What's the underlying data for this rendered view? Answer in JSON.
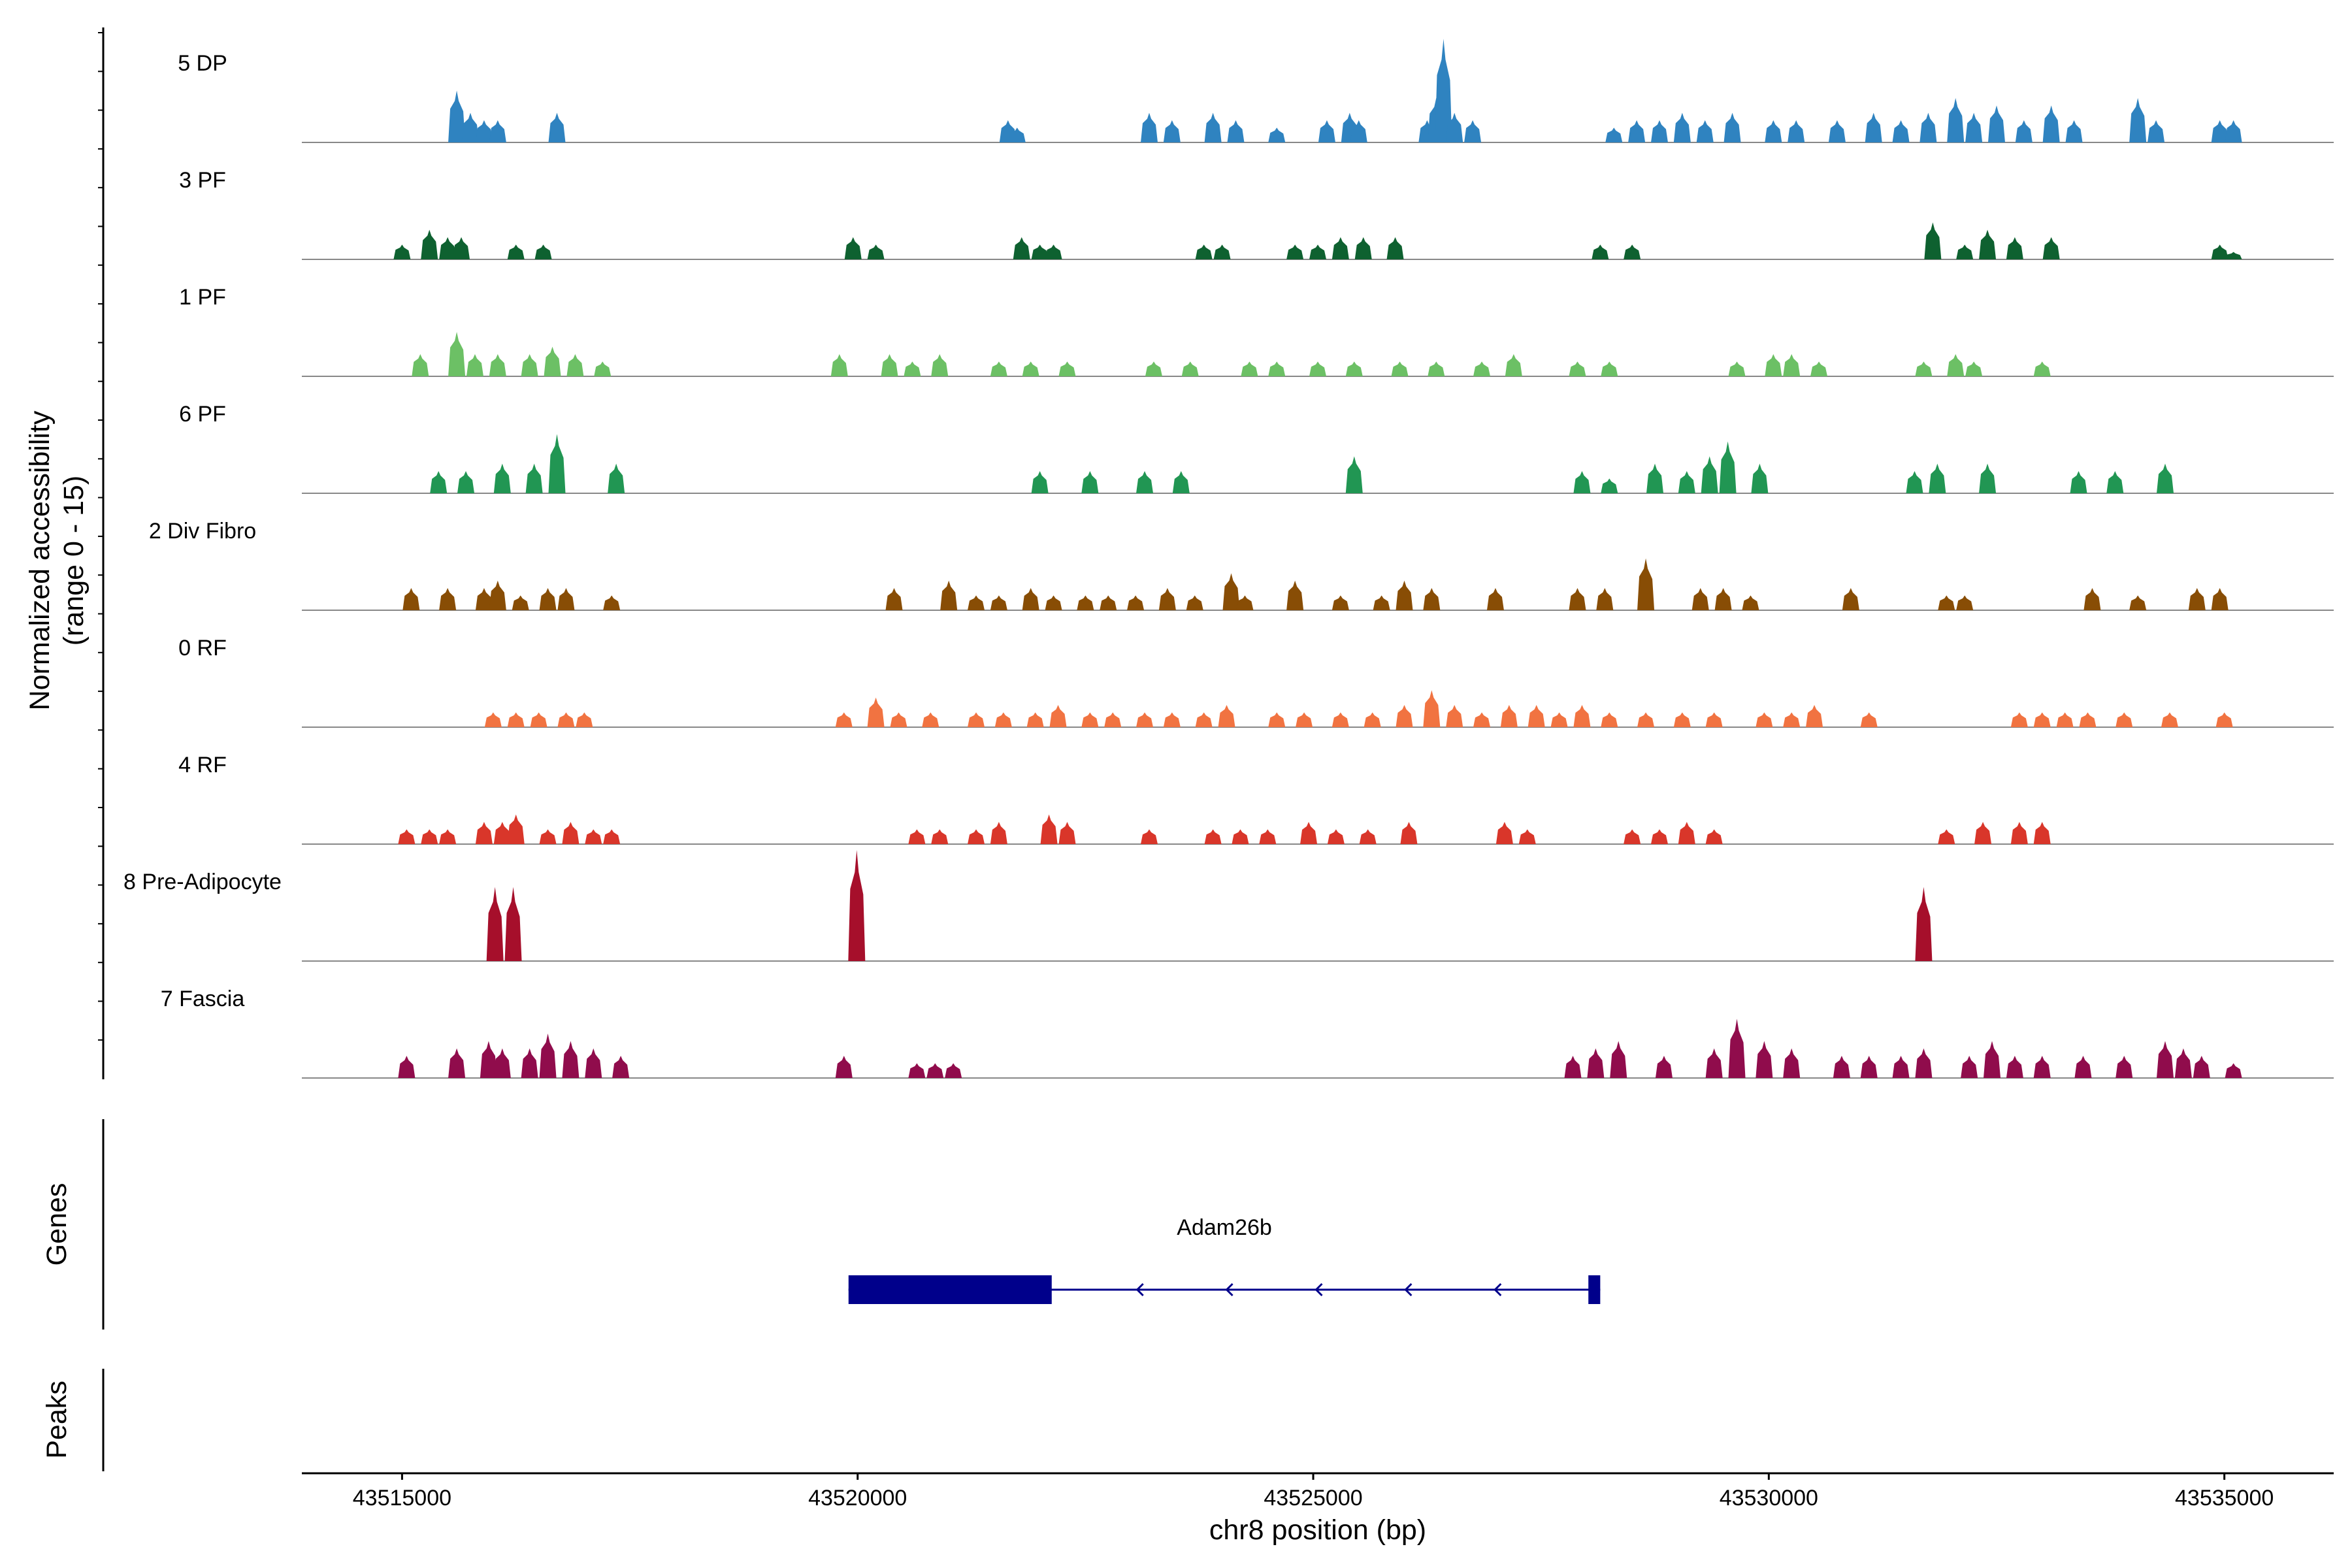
{
  "chart_data": {
    "type": "area",
    "title": "",
    "xlabel": "chr8 position (bp)",
    "ylabel_line1": "Normalized accessibility",
    "ylabel_line2": "(range 0 - 15)",
    "xlim": [
      43513900,
      43536200
    ],
    "ylim": [
      0,
      15
    ],
    "x_ticks": [
      {
        "value": 43515000,
        "label": "43515000"
      },
      {
        "value": 43520000,
        "label": "43520000"
      },
      {
        "value": 43525000,
        "label": "43525000"
      },
      {
        "value": 43530000,
        "label": "43530000"
      },
      {
        "value": 43535000,
        "label": "43535000"
      }
    ],
    "series": [
      {
        "name": "5 DP",
        "color": "#2f83c0",
        "peaks": [
          [
            43515600,
            7
          ],
          [
            43515750,
            4
          ],
          [
            43515900,
            3
          ],
          [
            43516050,
            3
          ],
          [
            43516700,
            4
          ],
          [
            43521650,
            3
          ],
          [
            43521750,
            2
          ],
          [
            43523200,
            4
          ],
          [
            43523450,
            3
          ],
          [
            43523900,
            4
          ],
          [
            43524150,
            3
          ],
          [
            43524600,
            2
          ],
          [
            43525150,
            3
          ],
          [
            43525400,
            4
          ],
          [
            43525500,
            3
          ],
          [
            43526250,
            3
          ],
          [
            43526350,
            6
          ],
          [
            43526430,
            14
          ],
          [
            43526550,
            4
          ],
          [
            43526750,
            3
          ],
          [
            43528300,
            2
          ],
          [
            43528550,
            3
          ],
          [
            43528800,
            3
          ],
          [
            43529050,
            4
          ],
          [
            43529300,
            3
          ],
          [
            43529600,
            4
          ],
          [
            43530050,
            3
          ],
          [
            43530300,
            3
          ],
          [
            43530750,
            3
          ],
          [
            43531150,
            4
          ],
          [
            43531450,
            3
          ],
          [
            43531750,
            4
          ],
          [
            43532050,
            6
          ],
          [
            43532250,
            4
          ],
          [
            43532500,
            5
          ],
          [
            43532800,
            3
          ],
          [
            43533100,
            5
          ],
          [
            43533350,
            3
          ],
          [
            43534050,
            6
          ],
          [
            43534250,
            3
          ],
          [
            43534950,
            3
          ],
          [
            43535100,
            3
          ]
        ]
      },
      {
        "name": "3 PF",
        "color": "#0e6130",
        "peaks": [
          [
            43515000,
            2
          ],
          [
            43515300,
            4
          ],
          [
            43515500,
            3
          ],
          [
            43515650,
            3
          ],
          [
            43516250,
            2
          ],
          [
            43516550,
            2
          ],
          [
            43519950,
            3
          ],
          [
            43520200,
            2
          ],
          [
            43521800,
            3
          ],
          [
            43522000,
            2
          ],
          [
            43522150,
            2
          ],
          [
            43523800,
            2
          ],
          [
            43524000,
            2
          ],
          [
            43524800,
            2
          ],
          [
            43525050,
            2
          ],
          [
            43525300,
            3
          ],
          [
            43525550,
            3
          ],
          [
            43525900,
            3
          ],
          [
            43528150,
            2
          ],
          [
            43528500,
            2
          ],
          [
            43531800,
            5
          ],
          [
            43532150,
            2
          ],
          [
            43532400,
            4
          ],
          [
            43532700,
            3
          ],
          [
            43533100,
            3
          ],
          [
            43534950,
            2
          ],
          [
            43535100,
            1
          ]
        ]
      },
      {
        "name": "1 PF",
        "color": "#6cc065",
        "peaks": [
          [
            43515200,
            3
          ],
          [
            43515600,
            6
          ],
          [
            43515800,
            3
          ],
          [
            43516050,
            3
          ],
          [
            43516400,
            3
          ],
          [
            43516650,
            4
          ],
          [
            43516900,
            3
          ],
          [
            43517200,
            2
          ],
          [
            43519800,
            3
          ],
          [
            43520350,
            3
          ],
          [
            43520600,
            2
          ],
          [
            43520900,
            3
          ],
          [
            43521550,
            2
          ],
          [
            43521900,
            2
          ],
          [
            43522300,
            2
          ],
          [
            43523250,
            2
          ],
          [
            43523650,
            2
          ],
          [
            43524300,
            2
          ],
          [
            43524600,
            2
          ],
          [
            43525050,
            2
          ],
          [
            43525450,
            2
          ],
          [
            43525950,
            2
          ],
          [
            43526350,
            2
          ],
          [
            43526850,
            2
          ],
          [
            43527200,
            3
          ],
          [
            43527900,
            2
          ],
          [
            43528250,
            2
          ],
          [
            43529650,
            2
          ],
          [
            43530050,
            3
          ],
          [
            43530250,
            3
          ],
          [
            43530550,
            2
          ],
          [
            43531700,
            2
          ],
          [
            43532050,
            3
          ],
          [
            43532250,
            2
          ],
          [
            43533000,
            2
          ]
        ]
      },
      {
        "name": "6 PF",
        "color": "#219653",
        "peaks": [
          [
            43515400,
            3
          ],
          [
            43515700,
            3
          ],
          [
            43516100,
            4
          ],
          [
            43516450,
            4
          ],
          [
            43516700,
            8
          ],
          [
            43517350,
            4
          ],
          [
            43522000,
            3
          ],
          [
            43522550,
            3
          ],
          [
            43523150,
            3
          ],
          [
            43523550,
            3
          ],
          [
            43525450,
            5
          ],
          [
            43527950,
            3
          ],
          [
            43528250,
            2
          ],
          [
            43528750,
            4
          ],
          [
            43529100,
            3
          ],
          [
            43529350,
            5
          ],
          [
            43529550,
            7
          ],
          [
            43529900,
            4
          ],
          [
            43531600,
            3
          ],
          [
            43531850,
            4
          ],
          [
            43532400,
            4
          ],
          [
            43533400,
            3
          ],
          [
            43533800,
            3
          ],
          [
            43534350,
            4
          ]
        ]
      },
      {
        "name": "2 Div Fibro",
        "color": "#884d05",
        "peaks": [
          [
            43515100,
            3
          ],
          [
            43515500,
            3
          ],
          [
            43515900,
            3
          ],
          [
            43516050,
            4
          ],
          [
            43516300,
            2
          ],
          [
            43516600,
            3
          ],
          [
            43516800,
            3
          ],
          [
            43517300,
            2
          ],
          [
            43520400,
            3
          ],
          [
            43521000,
            4
          ],
          [
            43521300,
            2
          ],
          [
            43521550,
            2
          ],
          [
            43521900,
            3
          ],
          [
            43522150,
            2
          ],
          [
            43522500,
            2
          ],
          [
            43522750,
            2
          ],
          [
            43523050,
            2
          ],
          [
            43523400,
            3
          ],
          [
            43523700,
            2
          ],
          [
            43524100,
            5
          ],
          [
            43524250,
            2
          ],
          [
            43524800,
            4
          ],
          [
            43525300,
            2
          ],
          [
            43525750,
            2
          ],
          [
            43526000,
            4
          ],
          [
            43526300,
            3
          ],
          [
            43527000,
            3
          ],
          [
            43527900,
            3
          ],
          [
            43528200,
            3
          ],
          [
            43528650,
            7
          ],
          [
            43529250,
            3
          ],
          [
            43529500,
            3
          ],
          [
            43529800,
            2
          ],
          [
            43530900,
            3
          ],
          [
            43531950,
            2
          ],
          [
            43532150,
            2
          ],
          [
            43533550,
            3
          ],
          [
            43534050,
            2
          ],
          [
            43534700,
            3
          ],
          [
            43534950,
            3
          ]
        ]
      },
      {
        "name": "0 RF",
        "color": "#f17341",
        "peaks": [
          [
            43516000,
            2
          ],
          [
            43516250,
            2
          ],
          [
            43516500,
            2
          ],
          [
            43516800,
            2
          ],
          [
            43517000,
            2
          ],
          [
            43519850,
            2
          ],
          [
            43520200,
            4
          ],
          [
            43520450,
            2
          ],
          [
            43520800,
            2
          ],
          [
            43521300,
            2
          ],
          [
            43521600,
            2
          ],
          [
            43521950,
            2
          ],
          [
            43522200,
            3
          ],
          [
            43522550,
            2
          ],
          [
            43522800,
            2
          ],
          [
            43523150,
            2
          ],
          [
            43523450,
            2
          ],
          [
            43523800,
            2
          ],
          [
            43524050,
            3
          ],
          [
            43524600,
            2
          ],
          [
            43524900,
            2
          ],
          [
            43525300,
            2
          ],
          [
            43525650,
            2
          ],
          [
            43526000,
            3
          ],
          [
            43526300,
            5
          ],
          [
            43526550,
            3
          ],
          [
            43526850,
            2
          ],
          [
            43527150,
            3
          ],
          [
            43527450,
            3
          ],
          [
            43527700,
            2
          ],
          [
            43527950,
            3
          ],
          [
            43528250,
            2
          ],
          [
            43528650,
            2
          ],
          [
            43529050,
            2
          ],
          [
            43529400,
            2
          ],
          [
            43529950,
            2
          ],
          [
            43530250,
            2
          ],
          [
            43530500,
            3
          ],
          [
            43531100,
            2
          ],
          [
            43532750,
            2
          ],
          [
            43533000,
            2
          ],
          [
            43533250,
            2
          ],
          [
            43533500,
            2
          ],
          [
            43533900,
            2
          ],
          [
            43534400,
            2
          ],
          [
            43535000,
            2
          ]
        ]
      },
      {
        "name": "4 RF",
        "color": "#d9362a",
        "peaks": [
          [
            43515050,
            2
          ],
          [
            43515300,
            2
          ],
          [
            43515500,
            2
          ],
          [
            43515900,
            3
          ],
          [
            43516100,
            3
          ],
          [
            43516250,
            4
          ],
          [
            43516600,
            2
          ],
          [
            43516850,
            3
          ],
          [
            43517100,
            2
          ],
          [
            43517300,
            2
          ],
          [
            43520650,
            2
          ],
          [
            43520900,
            2
          ],
          [
            43521300,
            2
          ],
          [
            43521550,
            3
          ],
          [
            43522100,
            4
          ],
          [
            43522300,
            3
          ],
          [
            43523200,
            2
          ],
          [
            43523900,
            2
          ],
          [
            43524200,
            2
          ],
          [
            43524500,
            2
          ],
          [
            43524950,
            3
          ],
          [
            43525250,
            2
          ],
          [
            43525600,
            2
          ],
          [
            43526050,
            3
          ],
          [
            43527100,
            3
          ],
          [
            43527350,
            2
          ],
          [
            43528500,
            2
          ],
          [
            43528800,
            2
          ],
          [
            43529100,
            3
          ],
          [
            43529400,
            2
          ],
          [
            43531950,
            2
          ],
          [
            43532350,
            3
          ],
          [
            43532750,
            3
          ],
          [
            43533000,
            3
          ]
        ]
      },
      {
        "name": "8 Pre-Adipocyte",
        "color": "#a60f2b",
        "peaks": [
          [
            43516020,
            10
          ],
          [
            43516220,
            10
          ],
          [
            43519990,
            15
          ],
          [
            43531700,
            10
          ]
        ]
      },
      {
        "name": "7 Fascia",
        "color": "#900c4c",
        "peaks": [
          [
            43515050,
            3
          ],
          [
            43515600,
            4
          ],
          [
            43515950,
            5
          ],
          [
            43516100,
            4
          ],
          [
            43516400,
            4
          ],
          [
            43516600,
            6
          ],
          [
            43516850,
            5
          ],
          [
            43517100,
            4
          ],
          [
            43517400,
            3
          ],
          [
            43519850,
            3
          ],
          [
            43520650,
            2
          ],
          [
            43520850,
            2
          ],
          [
            43521050,
            2
          ],
          [
            43527850,
            3
          ],
          [
            43528100,
            4
          ],
          [
            43528350,
            5
          ],
          [
            43528850,
            3
          ],
          [
            43529400,
            4
          ],
          [
            43529650,
            8
          ],
          [
            43529950,
            5
          ],
          [
            43530250,
            4
          ],
          [
            43530800,
            3
          ],
          [
            43531100,
            3
          ],
          [
            43531450,
            3
          ],
          [
            43531700,
            4
          ],
          [
            43532200,
            3
          ],
          [
            43532450,
            5
          ],
          [
            43532700,
            3
          ],
          [
            43533000,
            3
          ],
          [
            43533450,
            3
          ],
          [
            43533900,
            3
          ],
          [
            43534350,
            5
          ],
          [
            43534550,
            4
          ],
          [
            43534750,
            3
          ],
          [
            43535100,
            2
          ]
        ]
      }
    ],
    "genes_panel_label": "Genes",
    "peaks_panel_label": "Peaks",
    "gene": {
      "name": "Adam26b",
      "strand": "-",
      "start": 43519900,
      "end": 43528150,
      "exons": [
        [
          43519900,
          43522130
        ],
        [
          43528020,
          43528150
        ]
      ]
    }
  }
}
